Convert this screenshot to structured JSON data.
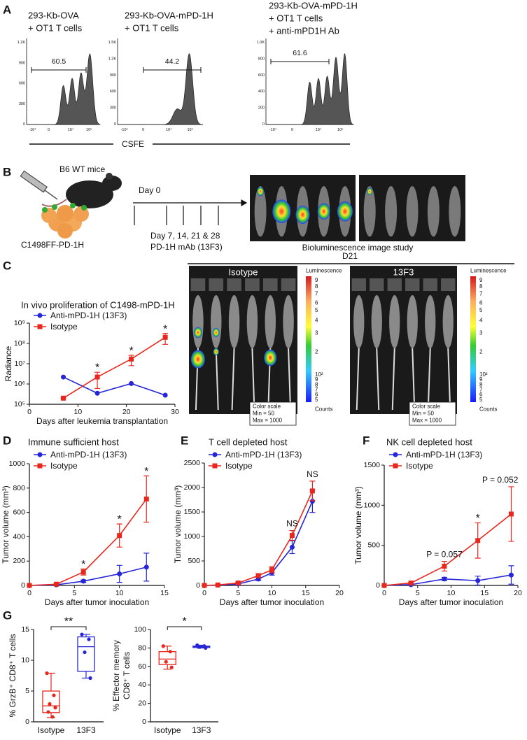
{
  "figure": {
    "panel_labels": [
      "A",
      "B",
      "C",
      "D",
      "E",
      "F",
      "G"
    ],
    "flow": {
      "panels": [
        {
          "title": [
            "293-Kb-OVA",
            "+ OT1 T cells"
          ],
          "gate": 60.5,
          "yticks": [
            "1.2K",
            "900",
            "600",
            "300",
            "0"
          ],
          "xticks": [
            "-10⁴",
            "0",
            "10⁴",
            "10⁵"
          ]
        },
        {
          "title": [
            "293-Kb-OVA-mPD-1H",
            "+ OT1 T cells"
          ],
          "gate": 44.2,
          "yticks": [
            "1.5K",
            "1.2K",
            "900",
            "600",
            "300",
            "0"
          ],
          "xticks": [
            "-10⁴",
            "0",
            "10⁴",
            "10⁵"
          ]
        },
        {
          "title": [
            "293-Kb-OVA-mPD-1H",
            "+ OT1 T cells",
            "+ anti-mPD1H Ab"
          ],
          "gate": 61.6,
          "yticks": [
            "1.0K",
            "800",
            "600",
            "400",
            "200",
            "0"
          ],
          "xticks": [
            "-10⁴",
            "0",
            "10⁴",
            "10⁵"
          ]
        }
      ],
      "xlabel": "CSFE"
    },
    "schema": {
      "mouse": "B6 WT mice",
      "cells": "C1498FF-PD-1H",
      "day0": "Day 0",
      "days": "Day 7, 14, 21 & 28",
      "treatment": "PD-1H mAb (13F3)",
      "imaging": "Bioluminescence image study"
    },
    "imaging": {
      "timepoint": "D21",
      "groups": [
        "Isotype",
        "13F3"
      ],
      "colorbar": {
        "title": "Luminescence",
        "ticks": [
          "9",
          "8",
          "7",
          "6",
          "5",
          "4",
          "3",
          "2",
          "10²",
          "9",
          "8",
          "7",
          "6",
          "5"
        ],
        "unit": "Counts"
      },
      "scale_box": [
        "Color scale",
        "Min = 50",
        "Max = 1000"
      ]
    }
  },
  "chart_data": [
    {
      "type": "line",
      "title": "In vivo proliferation of C1498-mPD-1H",
      "xlabel": "Days after leukemia transplantation",
      "ylabel": "Radiance",
      "x": [
        7,
        14,
        21,
        28
      ],
      "xlim": [
        0,
        30
      ],
      "xticks": [
        0,
        10,
        20,
        30
      ],
      "log_y": true,
      "ylim": [
        100000,
        1000000000
      ],
      "yticks": [
        {
          "value": 100000,
          "label": "10⁵"
        },
        {
          "value": 1000000,
          "label": "10⁶"
        },
        {
          "value": 10000000,
          "label": "10⁷"
        },
        {
          "value": 100000000,
          "label": "10⁸"
        },
        {
          "value": 1000000000,
          "label": "10⁹"
        }
      ],
      "series": [
        {
          "name": "Anti-mPD-1H (13F3)",
          "color": "#2626d6",
          "marker": "circle",
          "values": [
            2200000,
            350000,
            1050000,
            280000
          ]
        },
        {
          "name": "Isotype",
          "color": "#e8271e",
          "marker": "square",
          "values": [
            200000,
            2200000,
            17000000,
            200000000
          ],
          "errors": [
            0,
            1600000,
            9000000,
            110000000
          ]
        }
      ],
      "annotations": [
        {
          "x": 14,
          "text": "*"
        },
        {
          "x": 21,
          "text": "*"
        },
        {
          "x": 28,
          "text": "*"
        }
      ]
    },
    {
      "type": "line",
      "title": "Immune sufficient host",
      "xlabel": "Days after tumor inoculation",
      "ylabel": "Tumor volume (mm³)",
      "x": [
        0,
        3,
        6,
        10,
        13
      ],
      "xlim": [
        0,
        15
      ],
      "xticks": [
        0,
        5,
        10,
        15
      ],
      "ylim": [
        0,
        1000
      ],
      "yticks": [
        0,
        200,
        400,
        600,
        800,
        1000
      ],
      "series": [
        {
          "name": "Anti-mPD-1H (13F3)",
          "color": "#2626d6",
          "marker": "circle",
          "values": [
            0,
            5,
            35,
            95,
            150
          ],
          "errors": [
            0,
            3,
            10,
            70,
            115
          ]
        },
        {
          "name": "Isotype",
          "color": "#e8271e",
          "marker": "square",
          "values": [
            0,
            10,
            110,
            410,
            710
          ],
          "errors": [
            0,
            5,
            25,
            95,
            190
          ]
        }
      ],
      "annotations": [
        {
          "x": 6,
          "text": "*"
        },
        {
          "x": 10,
          "text": "*"
        },
        {
          "x": 13,
          "text": "*"
        }
      ]
    },
    {
      "type": "line",
      "title": "T cell depleted host",
      "xlabel": "Days after tumor inoculation",
      "ylabel": "Tumor volume (mm³)",
      "x": [
        0,
        2,
        5,
        8,
        10,
        13,
        16
      ],
      "xlim": [
        0,
        20
      ],
      "xticks": [
        0,
        5,
        10,
        15,
        20
      ],
      "ylim": [
        0,
        2500
      ],
      "yticks": [
        0,
        500,
        1000,
        1500,
        2000,
        2500
      ],
      "series": [
        {
          "name": "Anti-mPD-1H (13F3)",
          "color": "#2626d6",
          "marker": "circle",
          "values": [
            0,
            5,
            30,
            130,
            260,
            780,
            1720
          ],
          "errors": [
            0,
            5,
            10,
            30,
            50,
            130,
            230
          ]
        },
        {
          "name": "Isotype",
          "color": "#e8271e",
          "marker": "square",
          "values": [
            0,
            10,
            50,
            200,
            320,
            1020,
            1930
          ],
          "errors": [
            0,
            5,
            15,
            40,
            60,
            100,
            200
          ]
        }
      ],
      "annotations": [
        {
          "x": 13,
          "text": "NS"
        },
        {
          "x": 16,
          "text": "NS"
        }
      ]
    },
    {
      "type": "line",
      "title": "NK cell depleted host",
      "xlabel": "Days after tumor inoculation",
      "ylabel": "Tumor volume (mm³)",
      "x": [
        0,
        4,
        9,
        14,
        19
      ],
      "xlim": [
        0,
        20
      ],
      "xticks": [
        0,
        5,
        10,
        15,
        20
      ],
      "ylim": [
        0,
        1500
      ],
      "yticks": [
        0,
        500,
        1000,
        1500
      ],
      "series": [
        {
          "name": "Anti-mPD-1H (13F3)",
          "color": "#2626d6",
          "marker": "circle",
          "values": [
            0,
            10,
            80,
            60,
            130
          ],
          "errors": [
            0,
            5,
            20,
            55,
            115
          ]
        },
        {
          "name": "Isotype",
          "color": "#e8271e",
          "marker": "square",
          "values": [
            0,
            30,
            240,
            560,
            890
          ],
          "errors": [
            0,
            10,
            60,
            220,
            340
          ]
        }
      ],
      "annotations": [
        {
          "x": 9,
          "text": "P = 0.057"
        },
        {
          "x": 14,
          "text": "*"
        },
        {
          "x": 19,
          "text": "P = 0.052"
        }
      ]
    },
    {
      "type": "box",
      "ylabel": [
        "% GrzB⁺ CD8⁺ T cells"
      ],
      "categories": [
        "Isotype",
        "13F3"
      ],
      "colors": [
        "#e8271e",
        "#2626d6"
      ],
      "ylim": [
        0,
        15
      ],
      "yticks": [
        0,
        5,
        10,
        15
      ],
      "boxes": [
        {
          "whisker_low": 0.7,
          "q1": 1.5,
          "median": 2.6,
          "q3": 5.0,
          "whisker_high": 7.9,
          "points": [
            7.9,
            4.3,
            2.9,
            2.3,
            1.6,
            0.8
          ]
        },
        {
          "whisker_low": 7.1,
          "q1": 8.2,
          "median": 12.2,
          "q3": 13.8,
          "whisker_high": 14.2,
          "points": [
            14.2,
            13.4,
            11.3,
            7.1
          ]
        }
      ],
      "bracket": "**"
    },
    {
      "type": "box",
      "ylabel": [
        "% Effector memory",
        "CD8⁺ T cells"
      ],
      "categories": [
        "Isotype",
        "13F3"
      ],
      "colors": [
        "#e8271e",
        "#2626d6"
      ],
      "ylim": [
        0,
        100
      ],
      "yticks": [
        0,
        20,
        40,
        60,
        80,
        100
      ],
      "boxes": [
        {
          "whisker_low": 57,
          "q1": 62,
          "median": 68,
          "q3": 76,
          "whisker_high": 82,
          "points": [
            82,
            76,
            65,
            59
          ]
        },
        {
          "whisker_low": 80,
          "q1": 80.5,
          "median": 81.5,
          "q3": 82,
          "whisker_high": 83,
          "points": [
            83,
            82,
            81,
            80,
            81
          ]
        }
      ],
      "bracket": "*"
    }
  ]
}
